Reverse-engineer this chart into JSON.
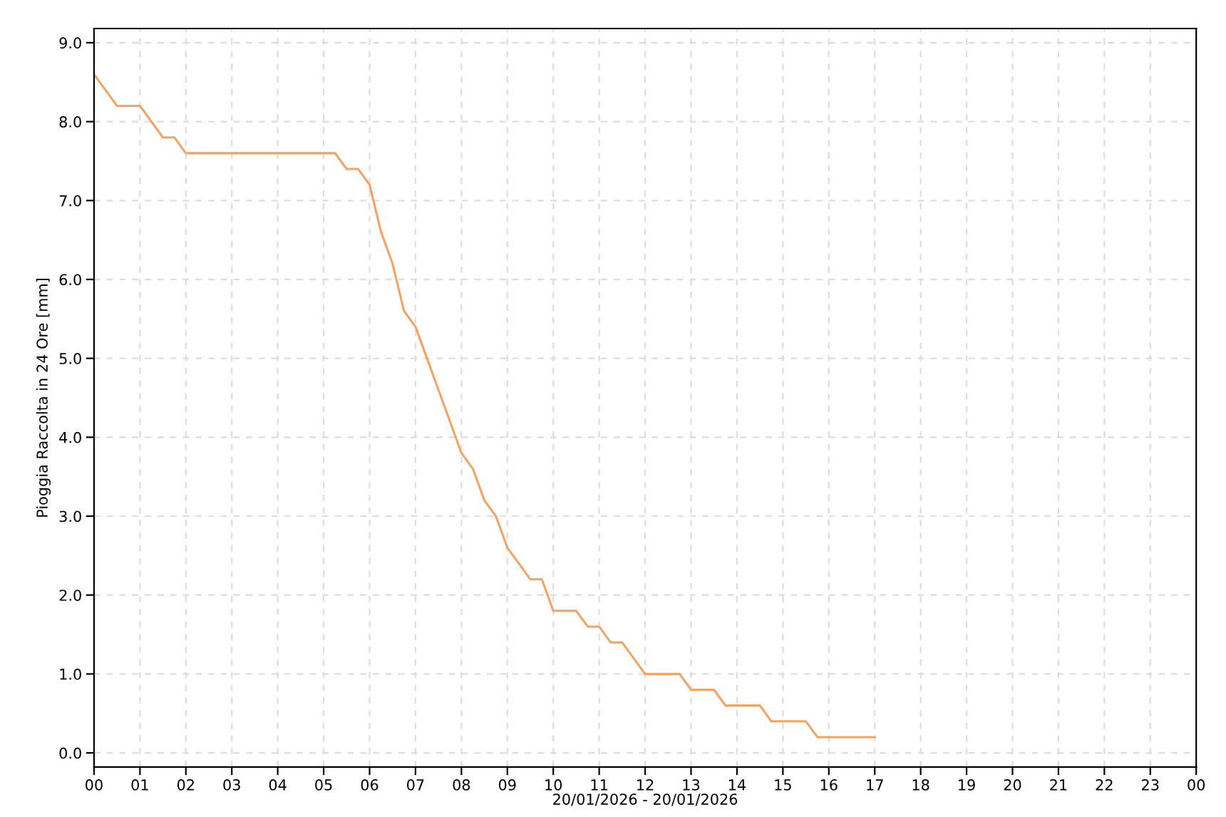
{
  "chart_data": {
    "type": "line",
    "xlabel": "20/01/2026 - 20/01/2026",
    "ylabel": "Pioggia Raccolta in 24 Ore [mm]",
    "x": [
      0,
      0.5,
      1,
      1.5,
      1.75,
      2,
      5.25,
      5.5,
      5.75,
      6,
      6.25,
      6.5,
      6.75,
      7,
      7.25,
      7.5,
      7.75,
      8,
      8.25,
      8.5,
      8.75,
      9,
      9.25,
      9.5,
      9.75,
      10,
      10.5,
      10.75,
      11,
      11.25,
      11.5,
      12,
      12.75,
      13,
      13.5,
      13.75,
      14.5,
      14.75,
      15.5,
      15.75,
      17
    ],
    "series": [
      {
        "color": "#f5a263",
        "values": [
          8.6,
          8.2,
          8.2,
          7.8,
          7.8,
          7.6,
          7.6,
          7.4,
          7.4,
          7.2,
          6.6,
          6.2,
          5.6,
          5.4,
          5.0,
          4.6,
          4.2,
          3.8,
          3.6,
          3.2,
          3.0,
          2.6,
          2.4,
          2.2,
          2.2,
          1.8,
          1.8,
          1.6,
          1.6,
          1.4,
          1.4,
          1.0,
          1.0,
          0.8,
          0.8,
          0.6,
          0.6,
          0.4,
          0.4,
          0.2,
          0.2
        ]
      }
    ],
    "xlim": [
      0,
      24
    ],
    "xticks": [
      {
        "value": 0,
        "label": "00"
      },
      {
        "value": 1,
        "label": "01"
      },
      {
        "value": 2,
        "label": "02"
      },
      {
        "value": 3,
        "label": "03"
      },
      {
        "value": 4,
        "label": "04"
      },
      {
        "value": 5,
        "label": "05"
      },
      {
        "value": 6,
        "label": "06"
      },
      {
        "value": 7,
        "label": "07"
      },
      {
        "value": 8,
        "label": "08"
      },
      {
        "value": 9,
        "label": "09"
      },
      {
        "value": 10,
        "label": "10"
      },
      {
        "value": 11,
        "label": "11"
      },
      {
        "value": 12,
        "label": "12"
      },
      {
        "value": 13,
        "label": "13"
      },
      {
        "value": 14,
        "label": "14"
      },
      {
        "value": 15,
        "label": "15"
      },
      {
        "value": 16,
        "label": "16"
      },
      {
        "value": 17,
        "label": "17"
      },
      {
        "value": 18,
        "label": "18"
      },
      {
        "value": 19,
        "label": "19"
      },
      {
        "value": 20,
        "label": "20"
      },
      {
        "value": 21,
        "label": "21"
      },
      {
        "value": 22,
        "label": "22"
      },
      {
        "value": 23,
        "label": "23"
      },
      {
        "value": 24,
        "label": "00"
      }
    ],
    "ylim": [
      -0.18,
      9.18
    ],
    "yticks": [
      {
        "value": 0,
        "label": "0.0"
      },
      {
        "value": 1,
        "label": "1.0"
      },
      {
        "value": 2,
        "label": "2.0"
      },
      {
        "value": 3,
        "label": "3.0"
      },
      {
        "value": 4,
        "label": "4.0"
      },
      {
        "value": 5,
        "label": "5.0"
      },
      {
        "value": 6,
        "label": "6.0"
      },
      {
        "value": 7,
        "label": "7.0"
      },
      {
        "value": 8,
        "label": "8.0"
      },
      {
        "value": 9,
        "label": "9.0"
      }
    ],
    "grid": true,
    "line_style": "solid",
    "marker": "none"
  }
}
